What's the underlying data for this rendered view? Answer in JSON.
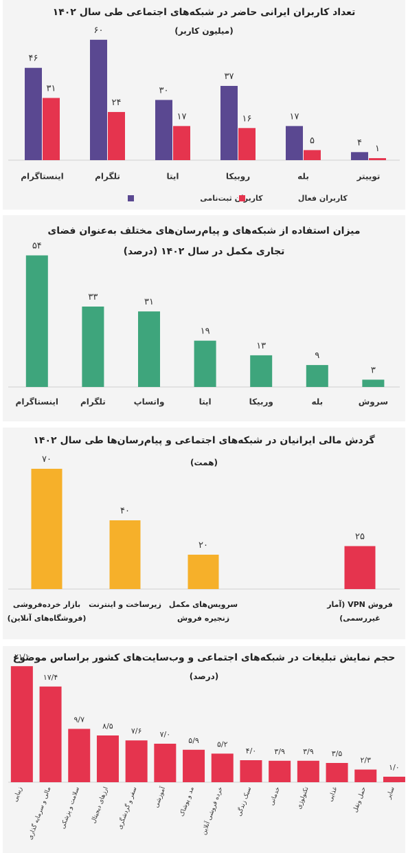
{
  "chart_data": [
    {
      "type": "bar",
      "title": "تعداد کاربران ایرانی حاضر در شبکه‌های اجتماعی طی سال ۱۴۰۲",
      "subtitle": "(میلیون کاربر)",
      "categories": [
        "اینستاگرام",
        "تلگرام",
        "ایتا",
        "روبیکا",
        "بله",
        "توییتر"
      ],
      "series": [
        {
          "name": "کاربران ثبت‌نامی",
          "color": "#5a4891",
          "values": [
            46,
            60,
            30,
            37,
            17,
            4
          ],
          "value_labels": [
            "۴۶",
            "۶۰",
            "۳۰",
            "۳۷",
            "۱۷",
            "۴"
          ]
        },
        {
          "name": "کاربران فعال",
          "color": "#e5344e",
          "values": [
            31,
            24,
            17,
            16,
            5,
            1
          ],
          "value_labels": [
            "۳۱",
            "۲۴",
            "۱۷",
            "۱۶",
            "۵",
            "۱"
          ]
        }
      ],
      "ylim": [
        0,
        62
      ]
    },
    {
      "type": "bar",
      "title": "میزان استفاده از شبکه‌های و پیام‌رسان‌های مختلف به‌عنوان فضای تجاری مکمل در سال ۱۴۰۲ (درصد)",
      "categories": [
        "اینستاگرام",
        "تلگرام",
        "واتساپ",
        "ایتا",
        "وربیکا",
        "بله",
        "سروش"
      ],
      "values": [
        54,
        33,
        31,
        19,
        13,
        9,
        3
      ],
      "value_labels": [
        "۵۴",
        "۳۳",
        "۳۱",
        "۱۹",
        "۱۳",
        "۹",
        "۳"
      ],
      "color": "#3ea57c",
      "ylim": [
        0,
        55
      ]
    },
    {
      "type": "bar",
      "title": "گردش مالی ایرانیان در شبکه‌های اجتماعی و پیام‌رسان‌ها طی سال ۱۴۰۲",
      "subtitle": "(همت)",
      "categories": [
        "بازار خرده‌فروشی (فروشگاه‌های آنلاین)",
        "زیرساخت و اینترنت",
        "سرویس‌های مکمل زنجیره فروش",
        null,
        "فروش VPN (آمار غیررسمی)"
      ],
      "values": [
        70,
        40,
        20,
        null,
        25
      ],
      "value_labels": [
        "۷۰",
        "۴۰",
        "۲۰",
        null,
        "۲۵"
      ],
      "colors": [
        "#f6b02a",
        "#f6b02a",
        "#f6b02a",
        null,
        "#e5344e"
      ],
      "ylim": [
        0,
        72
      ]
    },
    {
      "type": "bar",
      "title": "حجم نمایش تبلیغات در شبکه‌های اجتماعی و وب‌سایت‌های کشور براساس موضوع",
      "subtitle": "(درصد)",
      "categories": [
        "زیبایی",
        "مالی و سرمایه گذاری",
        "سلامت و پزشکی",
        "ارزهای دیجیتال",
        "سفر و گردشگری",
        "آموزشی",
        "مد و پوشاک",
        "خرده فروشی آنلاین",
        "سبک زندگی",
        "خدماتی",
        "تکنولوژی",
        "غذایی",
        "حمل ونقل",
        "سایر"
      ],
      "values": [
        21.1,
        17.4,
        9.7,
        8.5,
        7.6,
        7.0,
        5.9,
        5.2,
        4.0,
        3.9,
        3.9,
        3.5,
        2.3,
        1.0
      ],
      "value_labels": [
        "۲۱/۱",
        "۱۷/۴",
        "۹/۷",
        "۸/۵",
        "۷/۶",
        "۷/۰",
        "۵/۹",
        "۵/۲",
        "۴/۰",
        "۳/۹",
        "۳/۹",
        "۳/۵",
        "۲/۳",
        "۱/۰"
      ],
      "color": "#e5344e",
      "ylim": [
        0,
        22
      ]
    }
  ]
}
